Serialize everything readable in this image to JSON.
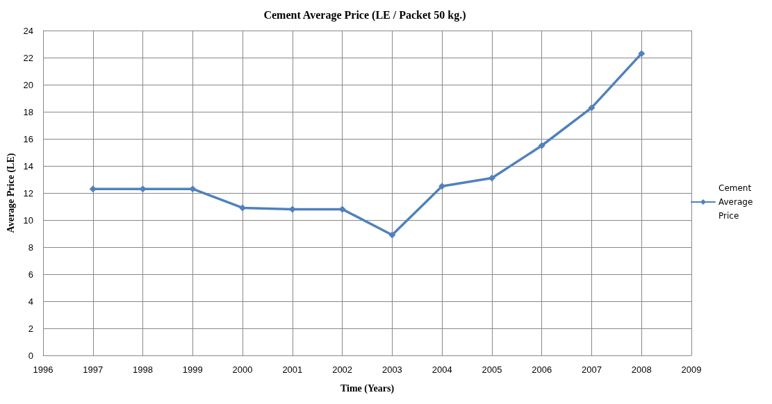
{
  "chart_data": {
    "type": "line",
    "title": "Cement Average Price (LE / Packet 50 kg.)",
    "xlabel": "Time (Years)",
    "ylabel": "Average Price (LE)",
    "x": [
      1997,
      1998,
      1999,
      2000,
      2001,
      2002,
      2003,
      2004,
      2005,
      2006,
      2007,
      2008
    ],
    "series": [
      {
        "name": "Cement Average Price",
        "color": "#4f81bd",
        "values": [
          12.3,
          12.3,
          12.3,
          10.9,
          10.8,
          10.8,
          8.9,
          12.5,
          13.1,
          15.5,
          18.3,
          22.3
        ]
      }
    ],
    "xlim": [
      1996,
      2009
    ],
    "xticks": [
      1996,
      1997,
      1998,
      1999,
      2000,
      2001,
      2002,
      2003,
      2004,
      2005,
      2006,
      2007,
      2008,
      2009
    ],
    "ylim": [
      0,
      24
    ],
    "yticks": [
      0,
      2,
      4,
      6,
      8,
      10,
      12,
      14,
      16,
      18,
      20,
      22,
      24
    ],
    "grid": true,
    "legend": "right",
    "marker": "diamond",
    "line_style": "solid"
  }
}
